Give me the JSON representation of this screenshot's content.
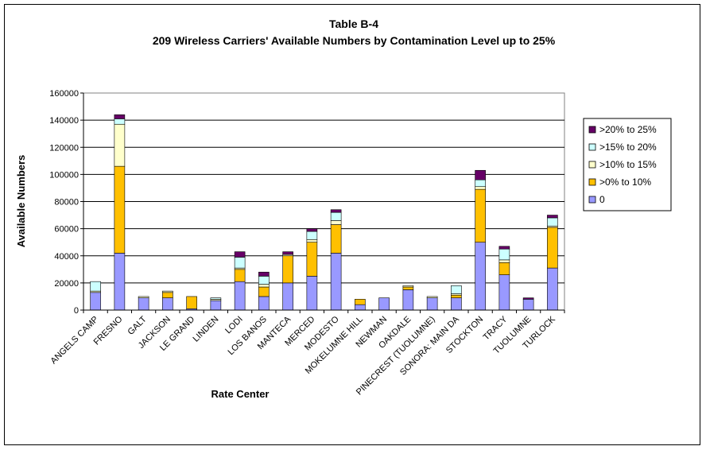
{
  "chart_data": {
    "type": "bar",
    "stacked": true,
    "title": "Table B-4",
    "subtitle": "209 Wireless Carriers' Available Numbers by Contamination Level up to 25%",
    "xlabel": "Rate Center",
    "ylabel": "Available Numbers",
    "ylim": [
      0,
      160000
    ],
    "ytick_labels": [
      "0",
      "20000",
      "40000",
      "60000",
      "80000",
      "100000",
      "120000",
      "140000",
      "160000"
    ],
    "grid": true,
    "legend_position": "right",
    "categories": [
      "ANGELS CAMP",
      "FRESNO",
      "GALT",
      "JACKSON",
      "LE GRAND",
      "LINDEN",
      "LODI",
      "LOS BANOS",
      "MANTECA",
      "MERCED",
      "MODESTO",
      "MOKELUMNE HILL",
      "NEWMAN",
      "OAKDALE",
      "PINECREST (TUOLUMNE)",
      "SONORA: MAIN DA",
      "STOCKTON",
      "TRACY",
      "TUOLUMNE",
      "TURLOCK"
    ],
    "series": [
      {
        "name": "0",
        "color": "#9999ff",
        "values": [
          13000,
          42000,
          9000,
          9000,
          1000,
          7000,
          21000,
          10000,
          20000,
          25000,
          42000,
          4000,
          9000,
          15000,
          9000,
          9000,
          50000,
          26000,
          8000,
          31000
        ]
      },
      {
        "name": ">0% to 10%",
        "color": "#ffc000",
        "values": [
          0,
          64000,
          0,
          4000,
          9000,
          0,
          9000,
          7000,
          20000,
          25000,
          21000,
          4000,
          0,
          2000,
          0,
          2000,
          39000,
          9000,
          0,
          30000
        ]
      },
      {
        "name": ">10% to 15%",
        "color": "#ffffcc",
        "values": [
          1000,
          31000,
          1000,
          1000,
          0,
          1000,
          1000,
          2000,
          1000,
          2000,
          3000,
          0,
          0,
          1000,
          1000,
          1000,
          2000,
          2000,
          0,
          1000
        ]
      },
      {
        "name": ">15% to 20%",
        "color": "#ccffff",
        "values": [
          7000,
          4000,
          0,
          0,
          0,
          1000,
          8000,
          6000,
          0,
          6000,
          6000,
          0,
          0,
          0,
          0,
          6000,
          5000,
          8000,
          0,
          6000
        ]
      },
      {
        "name": ">20% to 25%",
        "color": "#660066",
        "values": [
          0,
          3000,
          0,
          0,
          0,
          0,
          4000,
          3000,
          2000,
          2000,
          2000,
          0,
          0,
          0,
          0,
          0,
          7000,
          2000,
          1000,
          2000
        ]
      }
    ]
  }
}
